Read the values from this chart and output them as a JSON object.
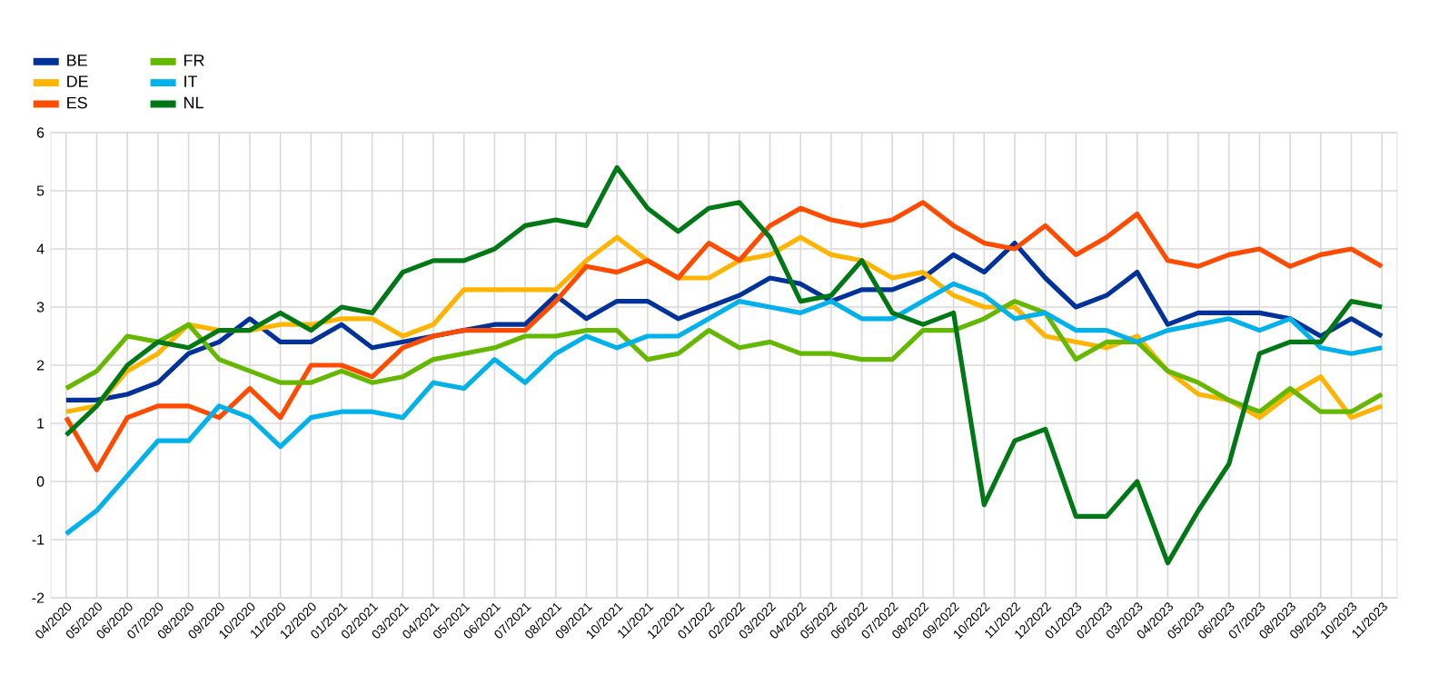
{
  "chart_data": {
    "type": "line",
    "categories": [
      "04/2020",
      "05/2020",
      "06/2020",
      "07/2020",
      "08/2020",
      "09/2020",
      "10/2020",
      "11/2020",
      "12/2020",
      "01/2021",
      "02/2021",
      "03/2021",
      "04/2021",
      "05/2021",
      "06/2021",
      "07/2021",
      "08/2021",
      "09/2021",
      "10/2021",
      "11/2021",
      "12/2021",
      "01/2022",
      "02/2022",
      "03/2022",
      "04/2022",
      "05/2022",
      "06/2022",
      "07/2022",
      "08/2022",
      "09/2022",
      "10/2022",
      "11/2022",
      "12/2022",
      "01/2023",
      "02/2023",
      "03/2023",
      "04/2023",
      "05/2023",
      "06/2023",
      "07/2023",
      "08/2023",
      "09/2023",
      "10/2023",
      "11/2023"
    ],
    "series": [
      {
        "name": "BE",
        "color": "#003299",
        "values": [
          1.4,
          1.4,
          1.5,
          1.7,
          2.2,
          2.4,
          2.8,
          2.4,
          2.4,
          2.7,
          2.3,
          2.4,
          2.5,
          2.6,
          2.7,
          2.7,
          3.2,
          2.8,
          3.1,
          3.1,
          2.8,
          3.0,
          3.2,
          3.5,
          3.4,
          3.1,
          3.3,
          3.3,
          3.5,
          3.9,
          3.6,
          4.1,
          3.5,
          3.0,
          3.2,
          3.6,
          2.7,
          2.9,
          2.9,
          2.9,
          2.8,
          2.5,
          2.8,
          2.5
        ]
      },
      {
        "name": "DE",
        "color": "#ffb400",
        "values": [
          1.2,
          1.3,
          1.9,
          2.2,
          2.7,
          2.6,
          2.6,
          2.7,
          2.7,
          2.8,
          2.8,
          2.5,
          2.7,
          3.3,
          3.3,
          3.3,
          3.3,
          3.8,
          4.2,
          3.8,
          3.5,
          3.5,
          3.8,
          3.9,
          4.2,
          3.9,
          3.8,
          3.5,
          3.6,
          3.2,
          3.0,
          3.0,
          2.5,
          2.4,
          2.3,
          2.5,
          1.9,
          1.5,
          1.4,
          1.1,
          1.5,
          1.8,
          1.1,
          1.3
        ]
      },
      {
        "name": "ES",
        "color": "#ff4b00",
        "values": [
          1.1,
          0.2,
          1.1,
          1.3,
          1.3,
          1.1,
          1.6,
          1.1,
          2.0,
          2.0,
          1.8,
          2.3,
          2.5,
          2.6,
          2.6,
          2.6,
          3.1,
          3.7,
          3.6,
          3.8,
          3.5,
          4.1,
          3.8,
          4.4,
          4.7,
          4.5,
          4.4,
          4.5,
          4.8,
          4.4,
          4.1,
          4.0,
          4.4,
          3.9,
          4.2,
          4.6,
          3.8,
          3.7,
          3.9,
          4.0,
          3.7,
          3.9,
          4.0,
          3.7
        ]
      },
      {
        "name": "FR",
        "color": "#65b800",
        "values": [
          1.6,
          1.9,
          2.5,
          2.4,
          2.7,
          2.1,
          1.9,
          1.7,
          1.7,
          1.9,
          1.7,
          1.8,
          2.1,
          2.2,
          2.3,
          2.5,
          2.5,
          2.6,
          2.6,
          2.1,
          2.2,
          2.6,
          2.3,
          2.4,
          2.2,
          2.2,
          2.1,
          2.1,
          2.6,
          2.6,
          2.8,
          3.1,
          2.9,
          2.1,
          2.4,
          2.4,
          1.9,
          1.7,
          1.4,
          1.2,
          1.6,
          1.2,
          1.2,
          1.5
        ]
      },
      {
        "name": "IT",
        "color": "#00b1ea",
        "values": [
          -0.9,
          -0.5,
          0.1,
          0.7,
          0.7,
          1.3,
          1.1,
          0.6,
          1.1,
          1.2,
          1.2,
          1.1,
          1.7,
          1.6,
          2.1,
          1.7,
          2.2,
          2.5,
          2.3,
          2.5,
          2.5,
          2.8,
          3.1,
          3.0,
          2.9,
          3.1,
          2.8,
          2.8,
          3.1,
          3.4,
          3.2,
          2.8,
          2.9,
          2.6,
          2.6,
          2.4,
          2.6,
          2.7,
          2.8,
          2.6,
          2.8,
          2.3,
          2.2,
          2.3
        ]
      },
      {
        "name": "NL",
        "color": "#007816",
        "values": [
          0.8,
          1.3,
          2.0,
          2.4,
          2.3,
          2.6,
          2.6,
          2.9,
          2.6,
          3.0,
          2.9,
          3.6,
          3.8,
          3.8,
          4.0,
          4.4,
          4.5,
          4.4,
          5.4,
          4.7,
          4.3,
          4.7,
          4.8,
          4.2,
          3.1,
          3.2,
          3.8,
          2.9,
          2.7,
          2.9,
          -0.4,
          0.7,
          0.9,
          -0.6,
          -0.6,
          0.0,
          -1.4,
          -0.5,
          0.3,
          2.2,
          2.4,
          2.4,
          3.1,
          3.0
        ]
      }
    ],
    "ylim": [
      -2,
      6
    ],
    "yticks": [
      -2,
      -1,
      0,
      1,
      2,
      3,
      4,
      5,
      6
    ],
    "grid": true,
    "legend": "top left",
    "marker": "none",
    "line_style": "solid"
  }
}
